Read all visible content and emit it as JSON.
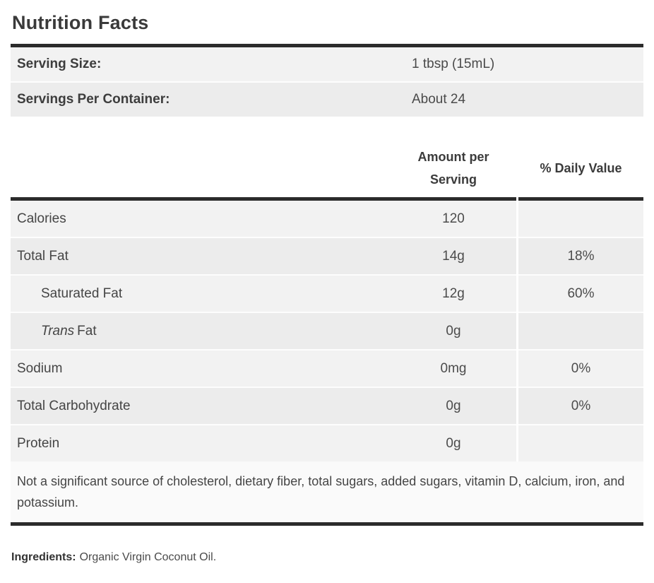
{
  "page": {
    "title": "Nutrition Facts"
  },
  "serving_info": {
    "rows": [
      {
        "label": "Serving Size:",
        "value": "1 tbsp (15mL)"
      },
      {
        "label": "Servings Per Container:",
        "value": "About 24"
      }
    ]
  },
  "nutrient_table": {
    "headers": {
      "amount": "Amount per Serving",
      "daily_value": "% Daily Value"
    },
    "rows": [
      {
        "label": "Calories",
        "amount": "120",
        "daily_value": "",
        "indent": false
      },
      {
        "label": "Total Fat",
        "amount": "14g",
        "daily_value": "18%",
        "indent": false
      },
      {
        "label": "Saturated Fat",
        "amount": "12g",
        "daily_value": "60%",
        "indent": true
      },
      {
        "label_italic": "Trans",
        "label": "Fat",
        "amount": "0g",
        "daily_value": "",
        "indent": true
      },
      {
        "label": "Sodium",
        "amount": "0mg",
        "daily_value": "0%",
        "indent": false
      },
      {
        "label": "Total Carbohydrate",
        "amount": "0g",
        "daily_value": "0%",
        "indent": false
      },
      {
        "label": "Protein",
        "amount": "0g",
        "daily_value": "",
        "indent": false
      }
    ],
    "footnote": "Not a significant source of cholesterol, dietary fiber, total sugars, added sugars, vitamin D, calcium, iron, and potassium."
  },
  "ingredients": {
    "label": "Ingredients:",
    "value": "Organic Virgin Coconut Oil."
  },
  "colors": {
    "rule": "#2b2b2b",
    "stripe_light": "#f2f2f2",
    "stripe_dark": "#ececec",
    "row_separator": "#fdfdfd",
    "footnote_bg": "#fafafa",
    "text": "#414141"
  }
}
